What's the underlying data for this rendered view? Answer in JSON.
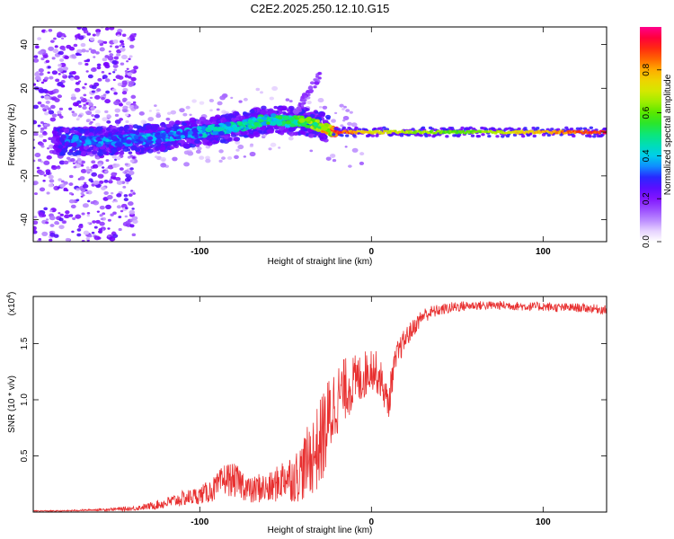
{
  "chart_data": [
    {
      "type": "heatmap",
      "title": "C2E2.2025.250.12.10.G15",
      "xlabel": "Height of straight line (km)",
      "ylabel": "Frequency (Hz)",
      "xlim": [
        -197,
        137
      ],
      "ylim": [
        -50,
        48
      ],
      "xticks": [
        -100,
        0,
        100
      ],
      "xtick_labels": [
        "-100",
        "0",
        "100"
      ],
      "yticks": [
        -40,
        -20,
        0,
        20,
        40
      ],
      "ytick_labels": [
        "-40",
        "-20",
        "0",
        "20",
        "40"
      ],
      "colorbar": {
        "label": "Normalized spectral amplitude",
        "range": [
          0,
          1
        ],
        "ticks": [
          0.0,
          0.2,
          0.4,
          0.6,
          0.8
        ],
        "tick_labels": [
          "0.0",
          "0.2",
          "0.4",
          "0.6",
          "0.8"
        ]
      },
      "ridge": {
        "x": [
          -180,
          -150,
          -130,
          -110,
          -90,
          -70,
          -60,
          -50,
          -40,
          -30,
          -25,
          -20,
          -10,
          0,
          50,
          137
        ],
        "freq": [
          -4,
          -4,
          -3,
          -1,
          1,
          4,
          6,
          5,
          5,
          3,
          1,
          0,
          -1,
          -1,
          0,
          0
        ],
        "amplitude": [
          0.3,
          0.35,
          0.35,
          0.35,
          0.4,
          0.45,
          0.5,
          0.5,
          0.55,
          0.65,
          0.8,
          0.95,
          0.8,
          0.75,
          0.6,
          0.95
        ]
      }
    },
    {
      "type": "line",
      "xlabel": "Height of straight line (km)",
      "ylabel": "SNR (10 * v/v)",
      "multiplier_label": "(x10",
      "multiplier_exp": "4",
      "xlim": [
        -197,
        137
      ],
      "ylim": [
        0,
        1.92
      ],
      "xticks": [
        -100,
        0,
        100
      ],
      "xtick_labels": [
        "-100",
        "0",
        "100"
      ],
      "yticks": [
        0.5,
        1.0,
        1.5
      ],
      "ytick_labels": [
        "0.5",
        "1.0",
        "1.5"
      ],
      "color": "#e83030",
      "series": [
        {
          "name": "SNR",
          "x": [
            -197,
            -180,
            -160,
            -140,
            -130,
            -120,
            -110,
            -100,
            -95,
            -90,
            -85,
            -80,
            -75,
            -70,
            -65,
            -60,
            -55,
            -50,
            -45,
            -40,
            -35,
            -32,
            -30,
            -28,
            -26,
            -24,
            -22,
            -20,
            -18,
            -15,
            -10,
            -5,
            0,
            5,
            8,
            10,
            12,
            15,
            20,
            25,
            30,
            35,
            40,
            50,
            60,
            70,
            80,
            90,
            100,
            110,
            120,
            130,
            137
          ],
          "y": [
            0.01,
            0.01,
            0.02,
            0.03,
            0.05,
            0.08,
            0.12,
            0.15,
            0.18,
            0.22,
            0.3,
            0.28,
            0.25,
            0.18,
            0.22,
            0.2,
            0.25,
            0.32,
            0.3,
            0.38,
            0.5,
            0.55,
            0.6,
            0.7,
            0.75,
            0.85,
            0.95,
            1.0,
            1.05,
            1.1,
            1.15,
            1.2,
            1.3,
            1.2,
            1.05,
            0.95,
            1.2,
            1.4,
            1.55,
            1.65,
            1.75,
            1.78,
            1.8,
            1.83,
            1.84,
            1.84,
            1.84,
            1.83,
            1.83,
            1.82,
            1.82,
            1.81,
            1.8
          ],
          "noise": [
            0.005,
            0.005,
            0.01,
            0.02,
            0.03,
            0.05,
            0.07,
            0.08,
            0.1,
            0.12,
            0.15,
            0.15,
            0.14,
            0.12,
            0.14,
            0.14,
            0.16,
            0.2,
            0.22,
            0.28,
            0.35,
            0.38,
            0.4,
            0.42,
            0.42,
            0.4,
            0.35,
            0.32,
            0.3,
            0.28,
            0.25,
            0.22,
            0.2,
            0.18,
            0.15,
            0.15,
            0.15,
            0.12,
            0.1,
            0.08,
            0.07,
            0.06,
            0.05,
            0.05,
            0.04,
            0.04,
            0.04,
            0.04,
            0.04,
            0.04,
            0.04,
            0.04,
            0.04
          ]
        }
      ]
    }
  ]
}
